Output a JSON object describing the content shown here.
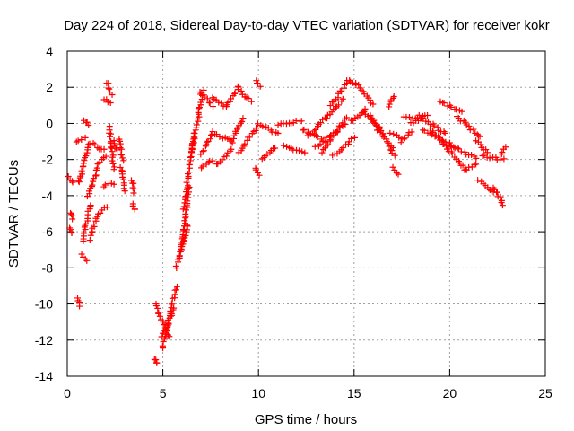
{
  "chart_data": {
    "type": "scatter",
    "title": "Day 224 of 2018, Sidereal Day-to-day VTEC variation (SDTVAR) for receiver kokr",
    "xlabel": "GPS time / hours",
    "ylabel": "SDTVAR / TECUs",
    "xlim": [
      0,
      25
    ],
    "ylim": [
      -14,
      4
    ],
    "xticks": [
      "0",
      "5",
      "10",
      "15",
      "20",
      "25"
    ],
    "yticks": [
      "4",
      "2",
      "0",
      "-2",
      "-4",
      "-6",
      "-8",
      "-10",
      "-12",
      "-14"
    ],
    "xtick_values": [
      0,
      5,
      10,
      15,
      20,
      25
    ],
    "ytick_values": [
      4,
      2,
      0,
      -2,
      -4,
      -6,
      -8,
      -10,
      -12,
      -14
    ],
    "grid": true,
    "marker": "+",
    "color": "#ff0000",
    "series": [
      {
        "name": "kokr",
        "segments": [
          {
            "x": [
              0.1,
              0.3
            ],
            "y": [
              -3.0,
              -3.3
            ]
          },
          {
            "x": [
              0.1,
              0.25
            ],
            "y": [
              -5.8,
              -6.1
            ]
          },
          {
            "x": [
              0.15,
              0.3
            ],
            "y": [
              -4.9,
              -5.3
            ]
          },
          {
            "x": [
              0.5,
              0.65
            ],
            "y": [
              -9.7,
              -10.1
            ]
          },
          {
            "x": [
              0.45,
              0.9
            ],
            "y": [
              -1.0,
              -0.8
            ]
          },
          {
            "x": [
              0.6,
              1.1
            ],
            "y": [
              -3.3,
              -1.2
            ]
          },
          {
            "x": [
              0.8,
              1.2
            ],
            "y": [
              -6.5,
              -4.5
            ]
          },
          {
            "x": [
              0.8,
              1.0
            ],
            "y": [
              -7.2,
              -7.6
            ]
          },
          {
            "x": [
              0.85,
              1.15
            ],
            "y": [
              0.2,
              -0.1
            ]
          },
          {
            "x": [
              1.1,
              1.6
            ],
            "y": [
              -4.1,
              -2.5
            ]
          },
          {
            "x": [
              1.15,
              1.6
            ],
            "y": [
              -6.4,
              -5.0
            ]
          },
          {
            "x": [
              1.2,
              1.9
            ],
            "y": [
              -1.1,
              -1.5
            ]
          },
          {
            "x": [
              1.6,
              2.0
            ],
            "y": [
              -2.2,
              -1.8
            ]
          },
          {
            "x": [
              1.7,
              2.1
            ],
            "y": [
              -4.9,
              -4.6
            ]
          },
          {
            "x": [
              1.9,
              2.4
            ],
            "y": [
              -3.5,
              -3.3
            ]
          },
          {
            "x": [
              1.9,
              2.3
            ],
            "y": [
              1.3,
              1.2
            ]
          },
          {
            "x": [
              2.1,
              2.3
            ],
            "y": [
              2.3,
              1.6
            ]
          },
          {
            "x": [
              2.2,
              2.45
            ],
            "y": [
              -0.2,
              -2.6
            ]
          },
          {
            "x": [
              2.4,
              2.6
            ],
            "y": [
              -1.0,
              -1.5
            ]
          },
          {
            "x": [
              2.7,
              2.9
            ],
            "y": [
              -0.9,
              -2.1
            ]
          },
          {
            "x": [
              2.8,
              3.0
            ],
            "y": [
              -2.4,
              -3.7
            ]
          },
          {
            "x": [
              3.4,
              3.55
            ],
            "y": [
              -4.5,
              -4.8
            ]
          },
          {
            "x": [
              3.4,
              3.5
            ],
            "y": [
              -3.1,
              -3.8
            ]
          },
          {
            "x": [
              4.55,
              4.7
            ],
            "y": [
              -13.0,
              -13.3
            ]
          },
          {
            "x": [
              4.6,
              5.3
            ],
            "y": [
              -10.0,
              -11.8
            ]
          },
          {
            "x": [
              4.9,
              5.6
            ],
            "y": [
              -11.8,
              -10.2
            ]
          },
          {
            "x": [
              5.0,
              5.7
            ],
            "y": [
              -12.4,
              -9.0
            ]
          },
          {
            "x": [
              5.7,
              6.3
            ],
            "y": [
              -8.0,
              -5.6
            ]
          },
          {
            "x": [
              5.9,
              6.4
            ],
            "y": [
              -7.3,
              -3.5
            ]
          },
          {
            "x": [
              6.1,
              6.6
            ],
            "y": [
              -4.7,
              -0.6
            ]
          },
          {
            "x": [
              6.5,
              7.1
            ],
            "y": [
              -1.7,
              1.8
            ]
          },
          {
            "x": [
              6.9,
              7.6
            ],
            "y": [
              1.8,
              1.0
            ]
          },
          {
            "x": [
              7.0,
              7.6
            ],
            "y": [
              -1.7,
              -0.6
            ]
          },
          {
            "x": [
              7.0,
              7.6
            ],
            "y": [
              -2.4,
              -2.0
            ]
          },
          {
            "x": [
              7.6,
              8.6
            ],
            "y": [
              -0.5,
              -1.0
            ]
          },
          {
            "x": [
              7.6,
              8.3
            ],
            "y": [
              1.5,
              0.9
            ]
          },
          {
            "x": [
              7.8,
              8.6
            ],
            "y": [
              -2.3,
              -1.5
            ]
          },
          {
            "x": [
              8.3,
              9.0
            ],
            "y": [
              1.0,
              2.0
            ]
          },
          {
            "x": [
              8.6,
              9.2
            ],
            "y": [
              -1.0,
              0.3
            ]
          },
          {
            "x": [
              8.9,
              9.6
            ],
            "y": [
              2.0,
              1.2
            ]
          },
          {
            "x": [
              9.0,
              9.9
            ],
            "y": [
              -1.6,
              -0.2
            ]
          },
          {
            "x": [
              9.9,
              10.05
            ],
            "y": [
              2.4,
              2.1
            ]
          },
          {
            "x": [
              9.85,
              10.0
            ],
            "y": [
              -2.5,
              -2.9
            ]
          },
          {
            "x": [
              10.0,
              11.0
            ],
            "y": [
              0.0,
              -0.6
            ]
          },
          {
            "x": [
              10.2,
              10.9
            ],
            "y": [
              -2.0,
              -1.3
            ]
          },
          {
            "x": [
              11.0,
              12.3
            ],
            "y": [
              -0.1,
              0.2
            ]
          },
          {
            "x": [
              11.3,
              12.4
            ],
            "y": [
              -1.3,
              -1.6
            ]
          },
          {
            "x": [
              12.3,
              13.5
            ],
            "y": [
              -0.3,
              -1.0
            ]
          },
          {
            "x": [
              12.6,
              14.4
            ],
            "y": [
              -0.7,
              1.3
            ]
          },
          {
            "x": [
              13.0,
              14.5
            ],
            "y": [
              -1.3,
              -0.1
            ]
          },
          {
            "x": [
              13.3,
              14.6
            ],
            "y": [
              -1.6,
              0.3
            ]
          },
          {
            "x": [
              13.8,
              14.6
            ],
            "y": [
              1.0,
              2.2
            ]
          },
          {
            "x": [
              14.6,
              15.1
            ],
            "y": [
              2.4,
              2.2
            ]
          },
          {
            "x": [
              15.1,
              16.0
            ],
            "y": [
              2.2,
              1.0
            ]
          },
          {
            "x": [
              13.9,
              15.0
            ],
            "y": [
              -1.8,
              -0.8
            ]
          },
          {
            "x": [
              14.8,
              15.6
            ],
            "y": [
              0.1,
              0.8
            ]
          },
          {
            "x": [
              15.5,
              16.3
            ],
            "y": [
              0.6,
              -0.2
            ]
          },
          {
            "x": [
              15.8,
              16.6
            ],
            "y": [
              0.5,
              -0.7
            ]
          },
          {
            "x": [
              16.2,
              17.0
            ],
            "y": [
              -0.3,
              -1.3
            ]
          },
          {
            "x": [
              16.9,
              17.5
            ],
            "y": [
              -0.6,
              -0.8
            ]
          },
          {
            "x": [
              16.8,
              17.1
            ],
            "y": [
              0.9,
              1.5
            ]
          },
          {
            "x": [
              17.0,
              17.3
            ],
            "y": [
              -2.5,
              -2.8
            ]
          },
          {
            "x": [
              16.8,
              17.1
            ],
            "y": [
              -1.3,
              -1.8
            ]
          },
          {
            "x": [
              17.5,
              18.0
            ],
            "y": [
              -1.0,
              -0.4
            ]
          },
          {
            "x": [
              17.6,
              18.6
            ],
            "y": [
              0.4,
              0.2
            ]
          },
          {
            "x": [
              18.0,
              18.8
            ],
            "y": [
              0.0,
              0.5
            ]
          },
          {
            "x": [
              18.4,
              19.8
            ],
            "y": [
              0.4,
              -0.6
            ]
          },
          {
            "x": [
              18.6,
              20.2
            ],
            "y": [
              -0.3,
              -1.3
            ]
          },
          {
            "x": [
              19.0,
              20.8
            ],
            "y": [
              -0.3,
              -2.5
            ]
          },
          {
            "x": [
              19.5,
              20.6
            ],
            "y": [
              1.2,
              0.6
            ]
          },
          {
            "x": [
              20.4,
              21.6
            ],
            "y": [
              0.4,
              -0.8
            ]
          },
          {
            "x": [
              20.0,
              21.4
            ],
            "y": [
              -1.2,
              -1.9
            ]
          },
          {
            "x": [
              20.8,
              21.4
            ],
            "y": [
              -2.6,
              -2.2
            ]
          },
          {
            "x": [
              21.4,
              22.0
            ],
            "y": [
              -1.0,
              -1.6
            ]
          },
          {
            "x": [
              21.7,
              22.8
            ],
            "y": [
              -1.8,
              -2.0
            ]
          },
          {
            "x": [
              21.5,
              22.3
            ],
            "y": [
              -3.2,
              -3.8
            ]
          },
          {
            "x": [
              22.3,
              22.8
            ],
            "y": [
              -3.5,
              -4.5
            ]
          },
          {
            "x": [
              22.7,
              22.9
            ],
            "y": [
              -1.7,
              -1.3
            ]
          }
        ]
      }
    ]
  }
}
